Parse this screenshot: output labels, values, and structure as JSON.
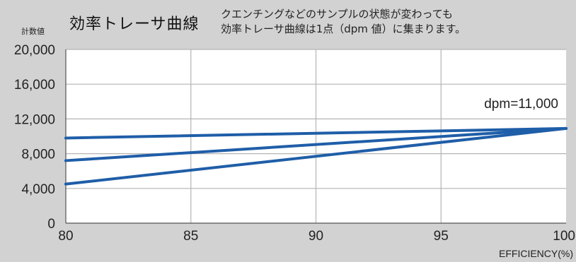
{
  "header": {
    "ylabel_unit": "計数値",
    "title": "効率トレーサ曲線",
    "subtitle_line1": "クエンチングなどのサンプルの状態が変わっても",
    "subtitle_line2": "効率トレーサ曲線は1点（dpm 値）に集まります。"
  },
  "chart_data": {
    "type": "line",
    "title": "効率トレーサ曲線",
    "xlabel": "EFFICIENCY(%)",
    "ylabel": "計数値",
    "xlim": [
      80,
      100
    ],
    "ylim": [
      0,
      20000
    ],
    "x_ticks": [
      80,
      85,
      90,
      95,
      100
    ],
    "y_ticks": [
      0,
      4000,
      8000,
      12000,
      16000,
      20000
    ],
    "x_tick_labels": [
      "80",
      "85",
      "90",
      "95",
      "100"
    ],
    "y_tick_labels": [
      "0",
      "4,000",
      "8,000",
      "12,000",
      "16,000",
      "20,000"
    ],
    "grid": true,
    "annotation": "dpm=11,000",
    "series": [
      {
        "x": [
          80,
          100
        ],
        "y": [
          9800,
          10900
        ]
      },
      {
        "x": [
          80,
          100
        ],
        "y": [
          7200,
          10900
        ]
      },
      {
        "x": [
          80,
          100
        ],
        "y": [
          4500,
          10900
        ]
      }
    ],
    "colors": {
      "line": "#1f5ea8",
      "plot_bg": "#ffffff",
      "page_bg": "#d2d2d2",
      "grid": "#b4b4b4"
    }
  }
}
